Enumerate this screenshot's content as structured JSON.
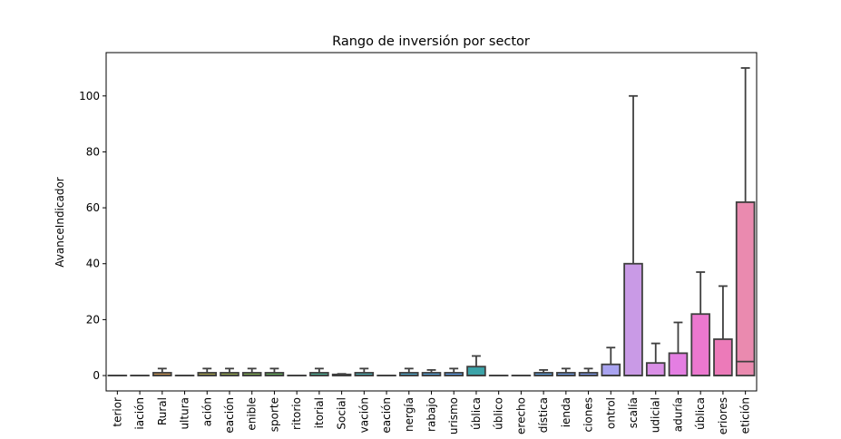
{
  "chart_data": {
    "type": "box",
    "title": "Rango de inversión por sector",
    "xlabel": "",
    "ylabel": "AvanceIndicador",
    "ylim": [
      -5.5,
      115.5
    ],
    "yticks": [
      0,
      20,
      40,
      60,
      80,
      100
    ],
    "grid": false,
    "legend": "none",
    "categories": [
      "terior",
      "iación",
      "Rural",
      "ultura",
      "ación",
      "eación",
      "enible",
      "sporte",
      "ritorio",
      "itorial",
      "Social",
      "vación",
      "eación",
      "nergía",
      "rabajo",
      "urismo",
      "ública",
      "úblico",
      "erecho",
      "dística",
      "ienda",
      "ciones",
      "ontrol",
      "scalía",
      "udicial",
      "aduría",
      "ública",
      "eriores",
      "etición"
    ],
    "boxes": [
      {
        "color": "#e1827b",
        "q1": 0,
        "median": 0,
        "q3": 0,
        "whislo": 0,
        "whishi": 0
      },
      {
        "color": "#db8a5f",
        "q1": 0,
        "median": 0,
        "q3": 0,
        "whislo": 0,
        "whishi": 0
      },
      {
        "color": "#c8914d",
        "q1": 0,
        "median": 0,
        "q3": 1,
        "whislo": 0,
        "whishi": 2.5
      },
      {
        "color": "#b59a4b",
        "q1": 0,
        "median": 0,
        "q3": 0,
        "whislo": 0,
        "whishi": 0
      },
      {
        "color": "#a4a04a",
        "q1": 0,
        "median": 0,
        "q3": 1,
        "whislo": 0,
        "whishi": 2.5
      },
      {
        "color": "#92a54b",
        "q1": 0,
        "median": 0,
        "q3": 1,
        "whislo": 0,
        "whishi": 2.5
      },
      {
        "color": "#7daa4d",
        "q1": 0,
        "median": 0,
        "q3": 1,
        "whislo": 0,
        "whishi": 2.5
      },
      {
        "color": "#63ae59",
        "q1": 0,
        "median": 0,
        "q3": 1,
        "whislo": 0,
        "whishi": 2.5
      },
      {
        "color": "#4db07f",
        "q1": 0,
        "median": 0,
        "q3": 0,
        "whislo": 0,
        "whishi": 0
      },
      {
        "color": "#4aae93",
        "q1": 0,
        "median": 0,
        "q3": 1,
        "whislo": 0,
        "whishi": 2.5
      },
      {
        "color": "#4aaca2",
        "q1": 0,
        "median": 0,
        "q3": 0.4,
        "whislo": 0,
        "whishi": 0.6
      },
      {
        "color": "#49abb0",
        "q1": 0,
        "median": 0,
        "q3": 1,
        "whislo": 0,
        "whishi": 2.5
      },
      {
        "color": "#4aa9bd",
        "q1": 0,
        "median": 0,
        "q3": 0,
        "whislo": 0,
        "whishi": 0
      },
      {
        "color": "#4ca6cc",
        "q1": 0,
        "median": 0,
        "q3": 1,
        "whislo": 0,
        "whishi": 2.5
      },
      {
        "color": "#50a2dc",
        "q1": 0,
        "median": 0,
        "q3": 1,
        "whislo": 0,
        "whishi": 2
      },
      {
        "color": "#5b9ded",
        "q1": 0,
        "median": 0,
        "q3": 1,
        "whislo": 0,
        "whishi": 2.5
      },
      {
        "color": "#3ba3a8",
        "q1": 0,
        "median": 0,
        "q3": 3.2,
        "whislo": 0,
        "whishi": 7
      },
      {
        "color": "#8a94f0",
        "q1": 0,
        "median": 0,
        "q3": 0,
        "whislo": 0,
        "whishi": 0
      },
      {
        "color": "#a08ef0",
        "q1": 0,
        "median": 0,
        "q3": 0,
        "whislo": 0,
        "whishi": 0
      },
      {
        "color": "#5c9fe0",
        "q1": 0,
        "median": 0,
        "q3": 1,
        "whislo": 0,
        "whishi": 2
      },
      {
        "color": "#6e9ce8",
        "q1": 0,
        "median": 0,
        "q3": 1,
        "whislo": 0,
        "whishi": 2.5
      },
      {
        "color": "#7a98ee",
        "q1": 0,
        "median": 0,
        "q3": 1,
        "whislo": 0,
        "whishi": 2.5
      },
      {
        "color": "#a9a3f0",
        "q1": 0,
        "median": 0,
        "q3": 4,
        "whislo": 0,
        "whishi": 10
      },
      {
        "color": "#c99ae6",
        "q1": 0,
        "median": 0,
        "q3": 40,
        "whislo": 0,
        "whishi": 100
      },
      {
        "color": "#da8fe6",
        "q1": 0,
        "median": 0,
        "q3": 4.5,
        "whislo": 0,
        "whishi": 11.5
      },
      {
        "color": "#e47ee2",
        "q1": 0,
        "median": 0,
        "q3": 8,
        "whislo": 0,
        "whishi": 19
      },
      {
        "color": "#eb78cf",
        "q1": 0,
        "median": 0,
        "q3": 22,
        "whislo": 0,
        "whishi": 37
      },
      {
        "color": "#ec7ab9",
        "q1": 0,
        "median": 0,
        "q3": 13,
        "whislo": 0,
        "whishi": 32
      },
      {
        "color": "#ea8aaf",
        "q1": 0,
        "median": 5,
        "q3": 62,
        "whislo": 0,
        "whishi": 110
      }
    ]
  }
}
